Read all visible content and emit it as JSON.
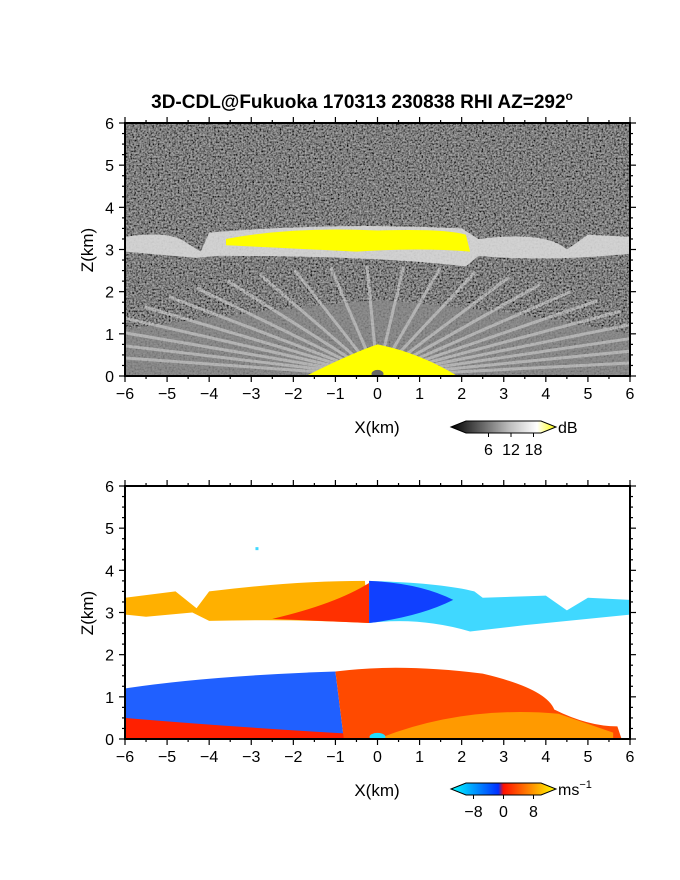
{
  "title": "3D-CDL@Fukuoka 170313 230838 RHI AZ=292",
  "title_sup": "o",
  "chart_data": [
    {
      "type": "heatmap",
      "quantity": "backscatter intensity",
      "xlabel": "X(km)",
      "ylabel": "Z(km)",
      "xlim": [
        -6,
        6
      ],
      "ylim": [
        0,
        6
      ],
      "x_ticks": [
        -6,
        -5,
        -4,
        -3,
        -2,
        -1,
        0,
        1,
        2,
        3,
        4,
        5,
        6
      ],
      "y_ticks": [
        0,
        1,
        2,
        3,
        4,
        5,
        6
      ],
      "colorbar": {
        "unit": "dB",
        "range": [
          0,
          20
        ],
        "ticks": [
          6,
          12,
          18
        ],
        "colors": [
          "#000000",
          "#ffffff",
          "#ffff00"
        ]
      },
      "features": [
        {
          "name": "cloud layer",
          "z_base_km": 2.8,
          "z_top_km": 3.5,
          "x_from_km": -6,
          "x_to_km": 6,
          "peak_yellow_x_km": [
            -3.5,
            2.2
          ]
        },
        {
          "name": "boundary layer",
          "z_top_km": 1.8,
          "near_ground_yellow_x_km": [
            -1.5,
            1.8
          ]
        }
      ]
    },
    {
      "type": "heatmap",
      "quantity": "radial velocity",
      "xlabel": "X(km)",
      "ylabel": "Z(km)",
      "xlim": [
        -6,
        6
      ],
      "ylim": [
        0,
        6
      ],
      "x_ticks": [
        -6,
        -5,
        -4,
        -3,
        -2,
        -1,
        0,
        1,
        2,
        3,
        4,
        5,
        6
      ],
      "y_ticks": [
        0,
        1,
        2,
        3,
        4,
        5,
        6
      ],
      "colorbar": {
        "unit": "ms",
        "unit_sup": "−1",
        "range": [
          -10,
          10
        ],
        "ticks": [
          -8,
          0,
          8
        ],
        "tick_labels": [
          "−8",
          "0",
          "8"
        ],
        "colors": [
          "#00ffff",
          "#0050ff",
          "#ff2000",
          "#ffff00"
        ]
      },
      "features": [
        {
          "name": "cloud layer",
          "z_base_km": 2.8,
          "z_top_km": 3.8,
          "velocity_left_ms": 5,
          "velocity_right_ms": -7
        },
        {
          "name": "lower layer",
          "z_base_km": 0,
          "z_top_km": 1.8,
          "velocity_left_upper_ms": -6,
          "velocity_right_ms": 4
        }
      ]
    }
  ]
}
